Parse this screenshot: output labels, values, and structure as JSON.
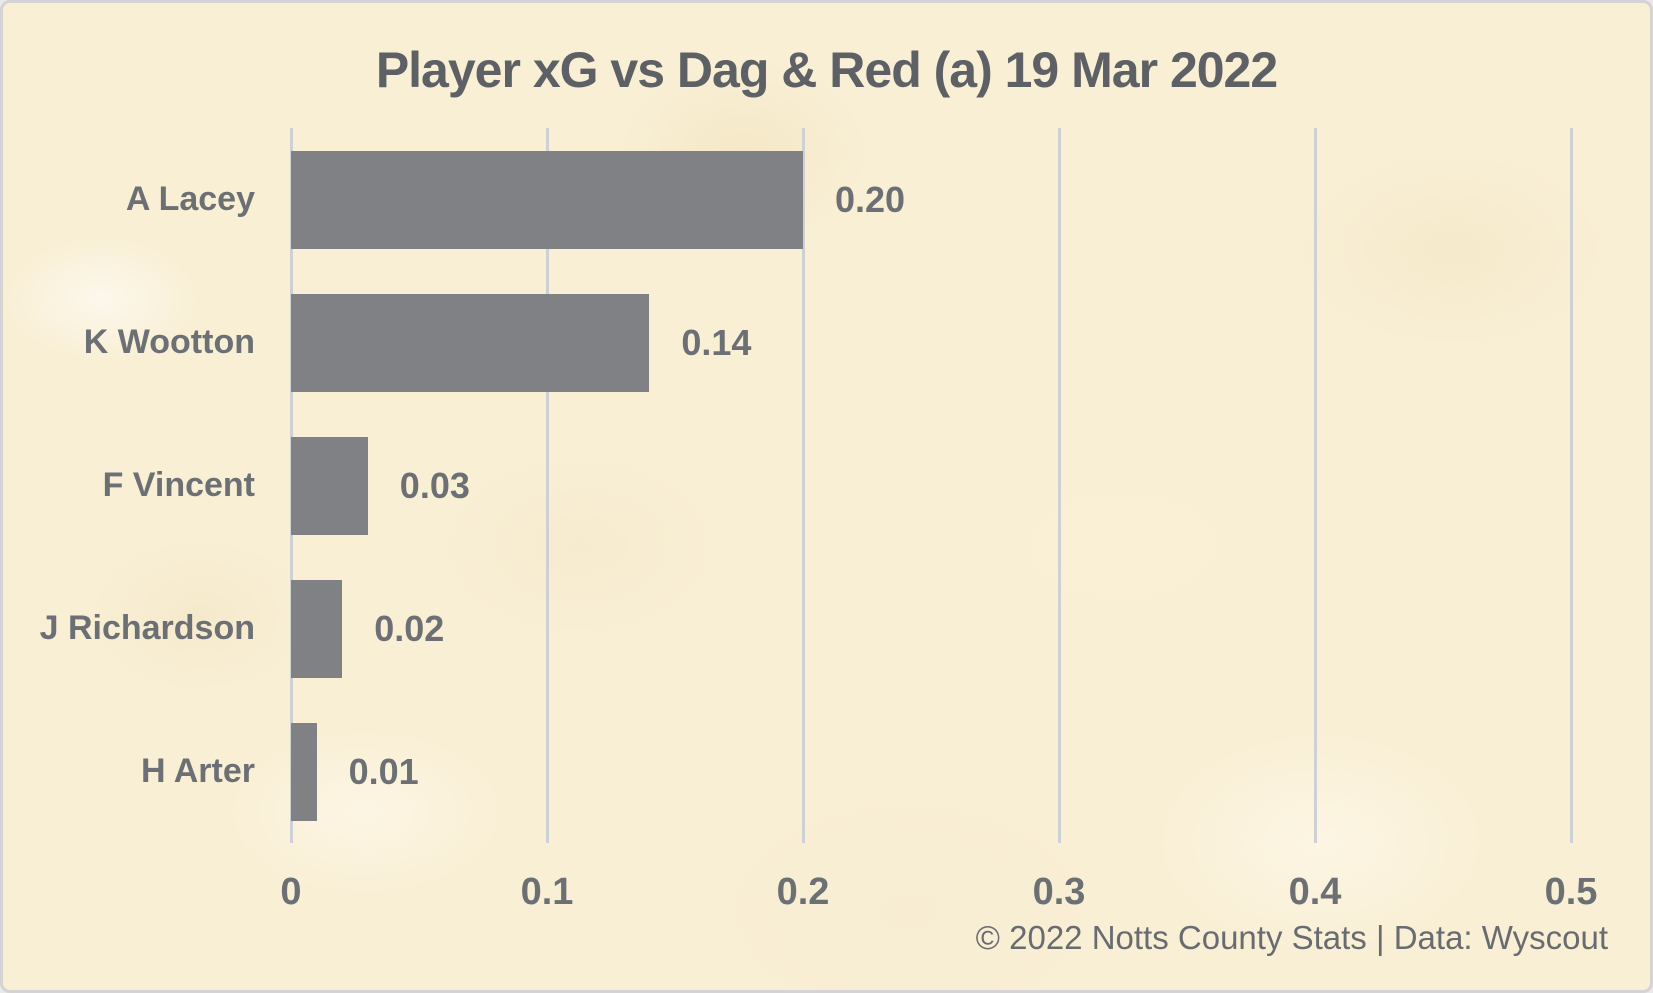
{
  "chart": {
    "title": "Player xG vs Dag & Red (a) 19 Mar 2022"
  },
  "chart_data": {
    "type": "bar",
    "orientation": "horizontal",
    "title": "Player xG vs Dag & Red (a) 19 Mar 2022",
    "categories": [
      "A Lacey",
      "K Wootton",
      "F Vincent",
      "J Richardson",
      "H Arter"
    ],
    "values": [
      0.2,
      0.14,
      0.03,
      0.02,
      0.01
    ],
    "value_labels": [
      "0.20",
      "0.14",
      "0.03",
      "0.02",
      "0.01"
    ],
    "xlabel": "",
    "ylabel": "",
    "xlim": [
      0,
      0.5
    ],
    "xticks": [
      0,
      0.1,
      0.2,
      0.3,
      0.4,
      0.5
    ],
    "xtick_labels": [
      "0",
      "0.1",
      "0.2",
      "0.3",
      "0.4",
      "0.5"
    ],
    "grid": "vertical-gridlines-on",
    "legend": "none"
  },
  "footer": {
    "credit": "© 2022 Notts County Stats | Data: Wyscout"
  },
  "colors": {
    "background": "#f9efd5",
    "bar": "#7f8184",
    "gridline": "#cdd0d4",
    "title_text": "#5d6064",
    "label_text": "#6c7074",
    "footer_text": "#686c70",
    "border": "#d4d4d4"
  }
}
